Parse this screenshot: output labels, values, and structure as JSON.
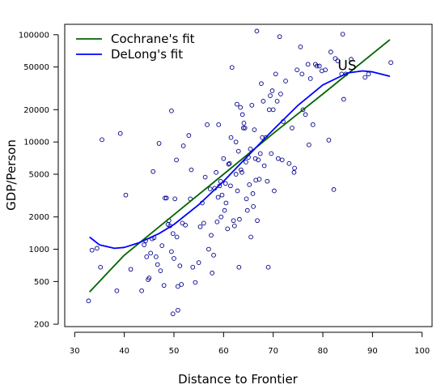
{
  "chart_data": {
    "type": "scatter",
    "title": "",
    "xlabel": "Distance to Frontier",
    "ylabel": "GDP/Person",
    "xlim": [
      28,
      102
    ],
    "ylim_log": [
      190,
      125000
    ],
    "y_scale": "log",
    "xticks": [
      30,
      40,
      50,
      60,
      70,
      80,
      90,
      100
    ],
    "yticks": [
      200,
      500,
      1000,
      2000,
      5000,
      10000,
      20000,
      50000,
      100000
    ],
    "grid": false,
    "legend_position": "top-left",
    "annotation": {
      "text": "US",
      "x": 83,
      "y": 52000
    },
    "point_color": "#00008b",
    "series": [
      {
        "name": "Cochrane's fit",
        "type": "line",
        "color": "#006400",
        "points": [
          [
            33,
            400
          ],
          [
            40,
            880
          ],
          [
            50,
            2100
          ],
          [
            60,
            5000
          ],
          [
            70,
            12000
          ],
          [
            80,
            28000
          ],
          [
            93.5,
            90000
          ]
        ]
      },
      {
        "name": "DeLong's fit",
        "type": "line",
        "color": "#0000ff",
        "points": [
          [
            33,
            1300
          ],
          [
            35,
            1100
          ],
          [
            38,
            1020
          ],
          [
            40,
            1040
          ],
          [
            43,
            1150
          ],
          [
            47,
            1400
          ],
          [
            50,
            1700
          ],
          [
            55,
            2600
          ],
          [
            60,
            4300
          ],
          [
            65,
            7500
          ],
          [
            70,
            13000
          ],
          [
            75,
            22000
          ],
          [
            80,
            34000
          ],
          [
            85,
            44000
          ],
          [
            88,
            46000
          ],
          [
            90,
            45000
          ],
          [
            93.5,
            41000
          ]
        ]
      }
    ],
    "points": [
      [
        32.8,
        330
      ],
      [
        33.5,
        980
      ],
      [
        34.5,
        1020
      ],
      [
        35.2,
        680
      ],
      [
        35.5,
        10500
      ],
      [
        38.5,
        410
      ],
      [
        39.2,
        12000
      ],
      [
        40.3,
        3200
      ],
      [
        41.3,
        650
      ],
      [
        43.5,
        410
      ],
      [
        44.0,
        1100
      ],
      [
        44.3,
        1200
      ],
      [
        44.5,
        850
      ],
      [
        44.8,
        520
      ],
      [
        45.0,
        540
      ],
      [
        45.3,
        920
      ],
      [
        45.6,
        1250
      ],
      [
        45.8,
        5300
      ],
      [
        46.0,
        1280
      ],
      [
        46.4,
        850
      ],
      [
        46.7,
        720
      ],
      [
        47.0,
        9700
      ],
      [
        47.3,
        630
      ],
      [
        47.6,
        1080
      ],
      [
        48.0,
        460
      ],
      [
        48.2,
        3000
      ],
      [
        48.5,
        3000
      ],
      [
        48.8,
        1700
      ],
      [
        49.0,
        1850
      ],
      [
        49.2,
        1650
      ],
      [
        49.5,
        19500
      ],
      [
        49.5,
        950
      ],
      [
        49.8,
        1400
      ],
      [
        49.8,
        250
      ],
      [
        50.0,
        820
      ],
      [
        50.2,
        2950
      ],
      [
        50.5,
        6800
      ],
      [
        50.6,
        1300
      ],
      [
        50.8,
        450
      ],
      [
        50.8,
        270
      ],
      [
        51.2,
        700
      ],
      [
        51.5,
        470
      ],
      [
        51.7,
        1750
      ],
      [
        51.9,
        9200
      ],
      [
        52.3,
        1680
      ],
      [
        53.0,
        11500
      ],
      [
        53.3,
        2950
      ],
      [
        53.5,
        5500
      ],
      [
        53.8,
        680
      ],
      [
        54.3,
        490
      ],
      [
        55.0,
        750
      ],
      [
        55.3,
        1620
      ],
      [
        55.7,
        2700
      ],
      [
        56.0,
        1750
      ],
      [
        56.3,
        4700
      ],
      [
        56.7,
        14500
      ],
      [
        57.0,
        1000
      ],
      [
        57.3,
        3650
      ],
      [
        57.5,
        1350
      ],
      [
        57.7,
        600
      ],
      [
        58.0,
        880
      ],
      [
        58.2,
        3700
      ],
      [
        58.5,
        5200
      ],
      [
        58.7,
        1800
      ],
      [
        58.9,
        3050
      ],
      [
        59.0,
        14500
      ],
      [
        59.2,
        3900
      ],
      [
        59.4,
        4300
      ],
      [
        59.5,
        2000
      ],
      [
        59.7,
        3200
      ],
      [
        60.0,
        7000
      ],
      [
        60.2,
        2300
      ],
      [
        60.4,
        4100
      ],
      [
        60.5,
        2700
      ],
      [
        60.8,
        1550
      ],
      [
        61.0,
        6200
      ],
      [
        61.2,
        6300
      ],
      [
        61.4,
        3900
      ],
      [
        61.5,
        11000
      ],
      [
        61.7,
        49500
      ],
      [
        62.0,
        1850
      ],
      [
        62.2,
        1650
      ],
      [
        62.5,
        10000
      ],
      [
        62.5,
        5000
      ],
      [
        62.7,
        22500
      ],
      [
        62.8,
        3500
      ],
      [
        63.0,
        8200
      ],
      [
        63.1,
        680
      ],
      [
        63.2,
        1900
      ],
      [
        63.4,
        21000
      ],
      [
        63.5,
        5500
      ],
      [
        63.7,
        5200
      ],
      [
        63.8,
        18000
      ],
      [
        64.0,
        13500
      ],
      [
        64.1,
        15000
      ],
      [
        64.3,
        13500
      ],
      [
        64.5,
        6500
      ],
      [
        64.6,
        2950
      ],
      [
        64.8,
        2300
      ],
      [
        65.0,
        7200
      ],
      [
        65.2,
        4000
      ],
      [
        65.4,
        8600
      ],
      [
        65.5,
        1300
      ],
      [
        65.7,
        22000
      ],
      [
        65.9,
        3300
      ],
      [
        66.0,
        2500
      ],
      [
        66.2,
        13000
      ],
      [
        66.4,
        7000
      ],
      [
        66.5,
        4400
      ],
      [
        66.7,
        108000
      ],
      [
        66.8,
        1850
      ],
      [
        67.0,
        6800
      ],
      [
        67.2,
        4500
      ],
      [
        67.4,
        7800
      ],
      [
        67.6,
        35000
      ],
      [
        67.8,
        11000
      ],
      [
        68.0,
        24000
      ],
      [
        68.2,
        6000
      ],
      [
        68.5,
        11000
      ],
      [
        68.8,
        4300
      ],
      [
        69.0,
        680
      ],
      [
        69.2,
        20000
      ],
      [
        69.4,
        27000
      ],
      [
        69.6,
        7800
      ],
      [
        69.8,
        30000
      ],
      [
        70.0,
        20000
      ],
      [
        70.2,
        3500
      ],
      [
        70.5,
        43000
      ],
      [
        70.8,
        24000
      ],
      [
        71.0,
        7000
      ],
      [
        71.3,
        96000
      ],
      [
        71.5,
        28000
      ],
      [
        71.8,
        6800
      ],
      [
        72.0,
        15500
      ],
      [
        72.5,
        37000
      ],
      [
        73.2,
        6300
      ],
      [
        73.8,
        13500
      ],
      [
        74.2,
        5200
      ],
      [
        74.3,
        5700
      ],
      [
        74.8,
        47000
      ],
      [
        75.5,
        77000
      ],
      [
        75.8,
        43000
      ],
      [
        76.0,
        20000
      ],
      [
        76.5,
        18000
      ],
      [
        77.0,
        53000
      ],
      [
        77.2,
        9400
      ],
      [
        77.5,
        39000
      ],
      [
        78.0,
        14500
      ],
      [
        78.5,
        53000
      ],
      [
        78.8,
        51000
      ],
      [
        79.3,
        51000
      ],
      [
        79.8,
        46000
      ],
      [
        80.5,
        47000
      ],
      [
        81.2,
        10400
      ],
      [
        81.6,
        69000
      ],
      [
        82.2,
        3600
      ],
      [
        82.5,
        60000
      ],
      [
        83.0,
        57000
      ],
      [
        83.8,
        43000
      ],
      [
        84.2,
        25000
      ],
      [
        84.0,
        101000
      ],
      [
        84.6,
        43000
      ],
      [
        85.7,
        59000
      ],
      [
        88.5,
        40000
      ],
      [
        89.2,
        43000
      ],
      [
        93.7,
        55000
      ]
    ]
  }
}
